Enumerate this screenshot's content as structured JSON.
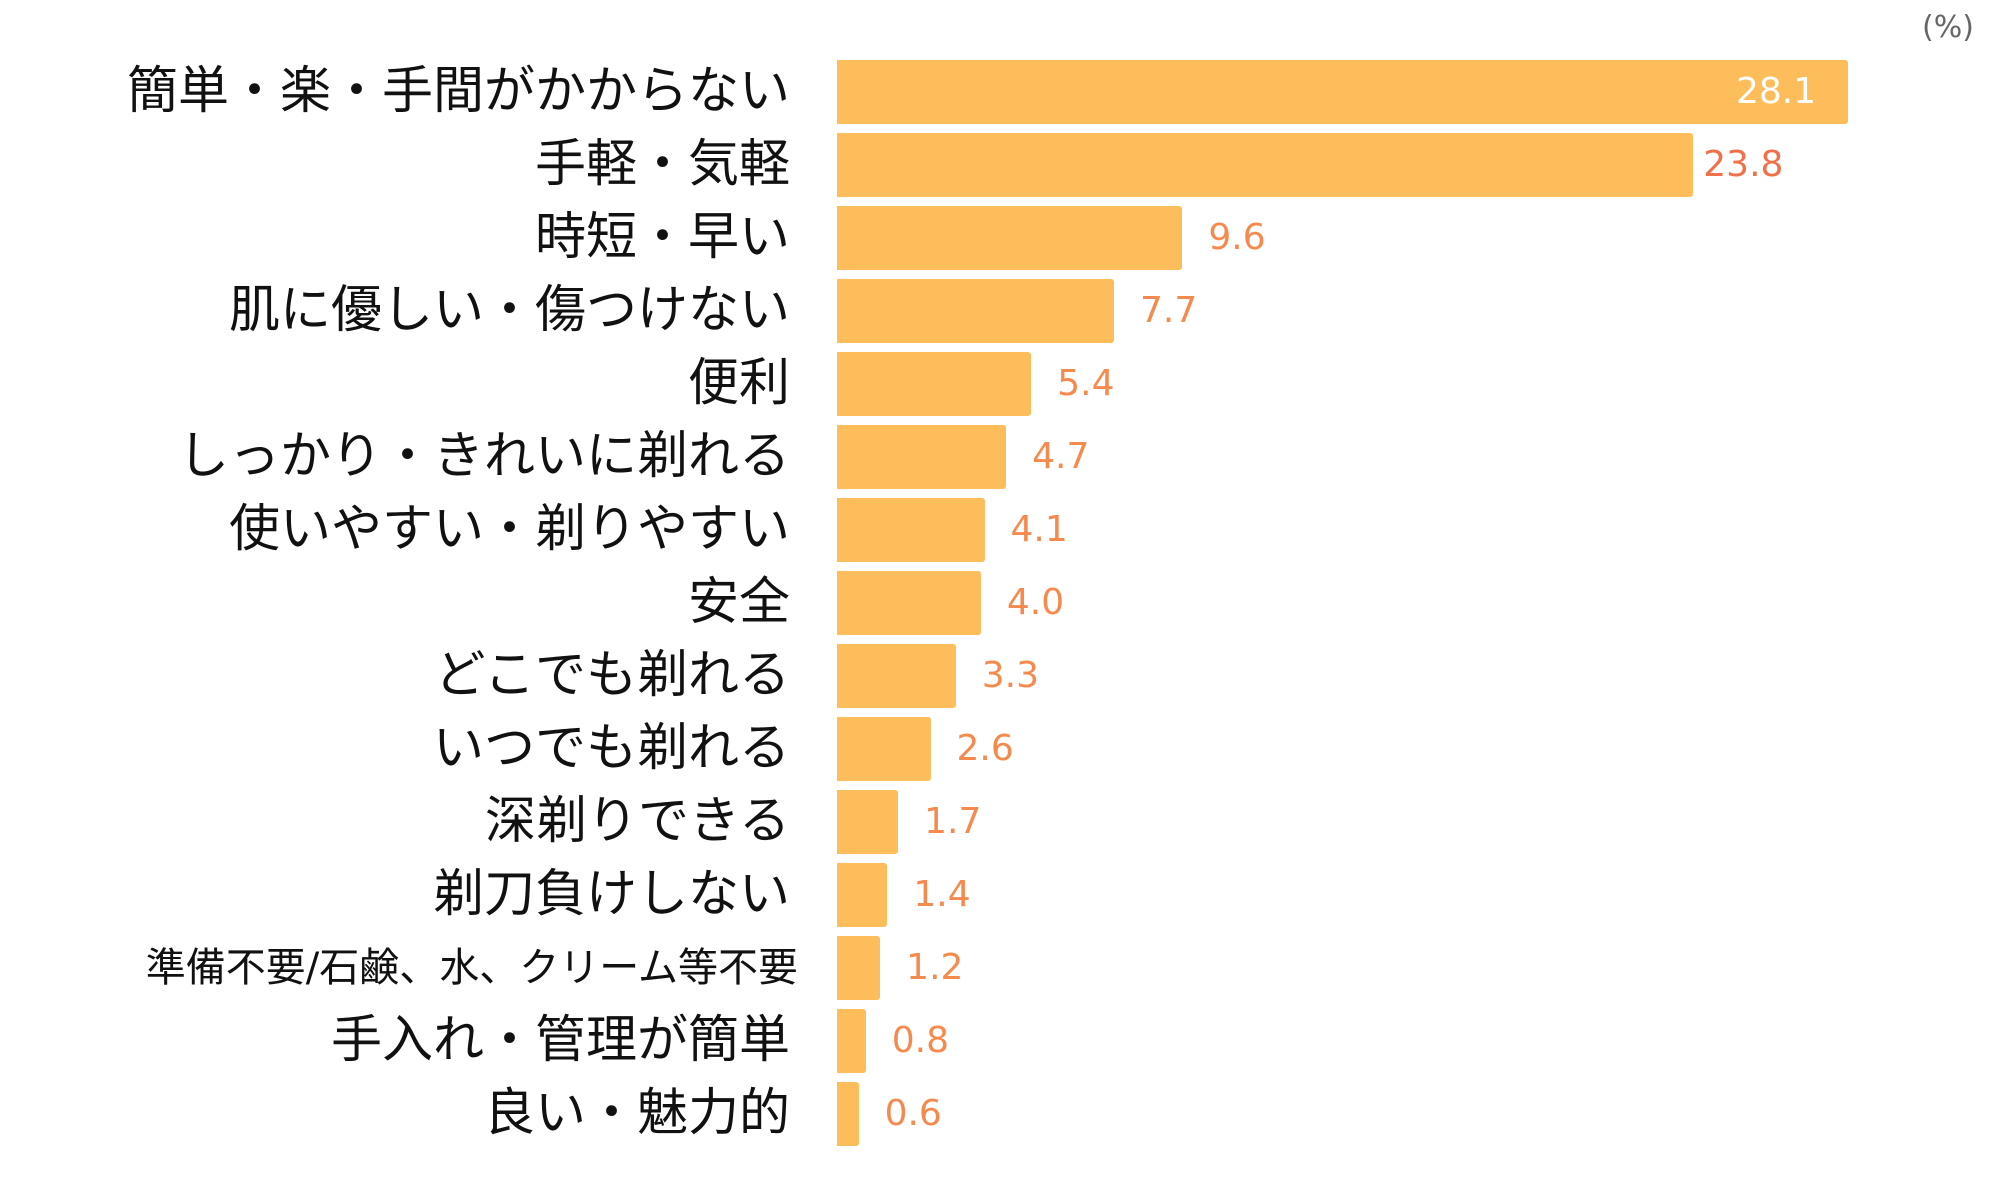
{
  "chart_data": {
    "type": "bar",
    "orientation": "horizontal",
    "unit_label": "(%)",
    "categories": [
      "簡単・楽・手間がかからない",
      "手軽・気軽",
      "時短・早い",
      "肌に優しい・傷つけない",
      "便利",
      "しっかり・きれいに剃れる",
      "使いやすい・剃りやすい",
      "安全",
      "どこでも剃れる",
      "いつでも剃れる",
      "深剃りできる",
      "剃刀負けしない",
      "準備不要/石鹸、水、クリーム等不要",
      "手入れ・管理が簡単",
      "良い・魅力的"
    ],
    "values": [
      28.1,
      23.8,
      9.6,
      7.7,
      5.4,
      4.7,
      4.1,
      4.0,
      3.3,
      2.6,
      1.7,
      1.4,
      1.2,
      0.8,
      0.6
    ],
    "value_labels": [
      "28.1",
      "23.8",
      "9.6",
      "7.7",
      "5.4",
      "4.7",
      "4.1",
      "4.0",
      "3.3",
      "2.6",
      "1.7",
      "1.4",
      "1.2",
      "0.8",
      "0.6"
    ],
    "xlim": [
      0,
      28.1
    ],
    "grid": false,
    "colors": {
      "bar": "#FDBD5A",
      "value_label": "#F58A4E",
      "value_label_inside": "#FFFFFF"
    }
  }
}
